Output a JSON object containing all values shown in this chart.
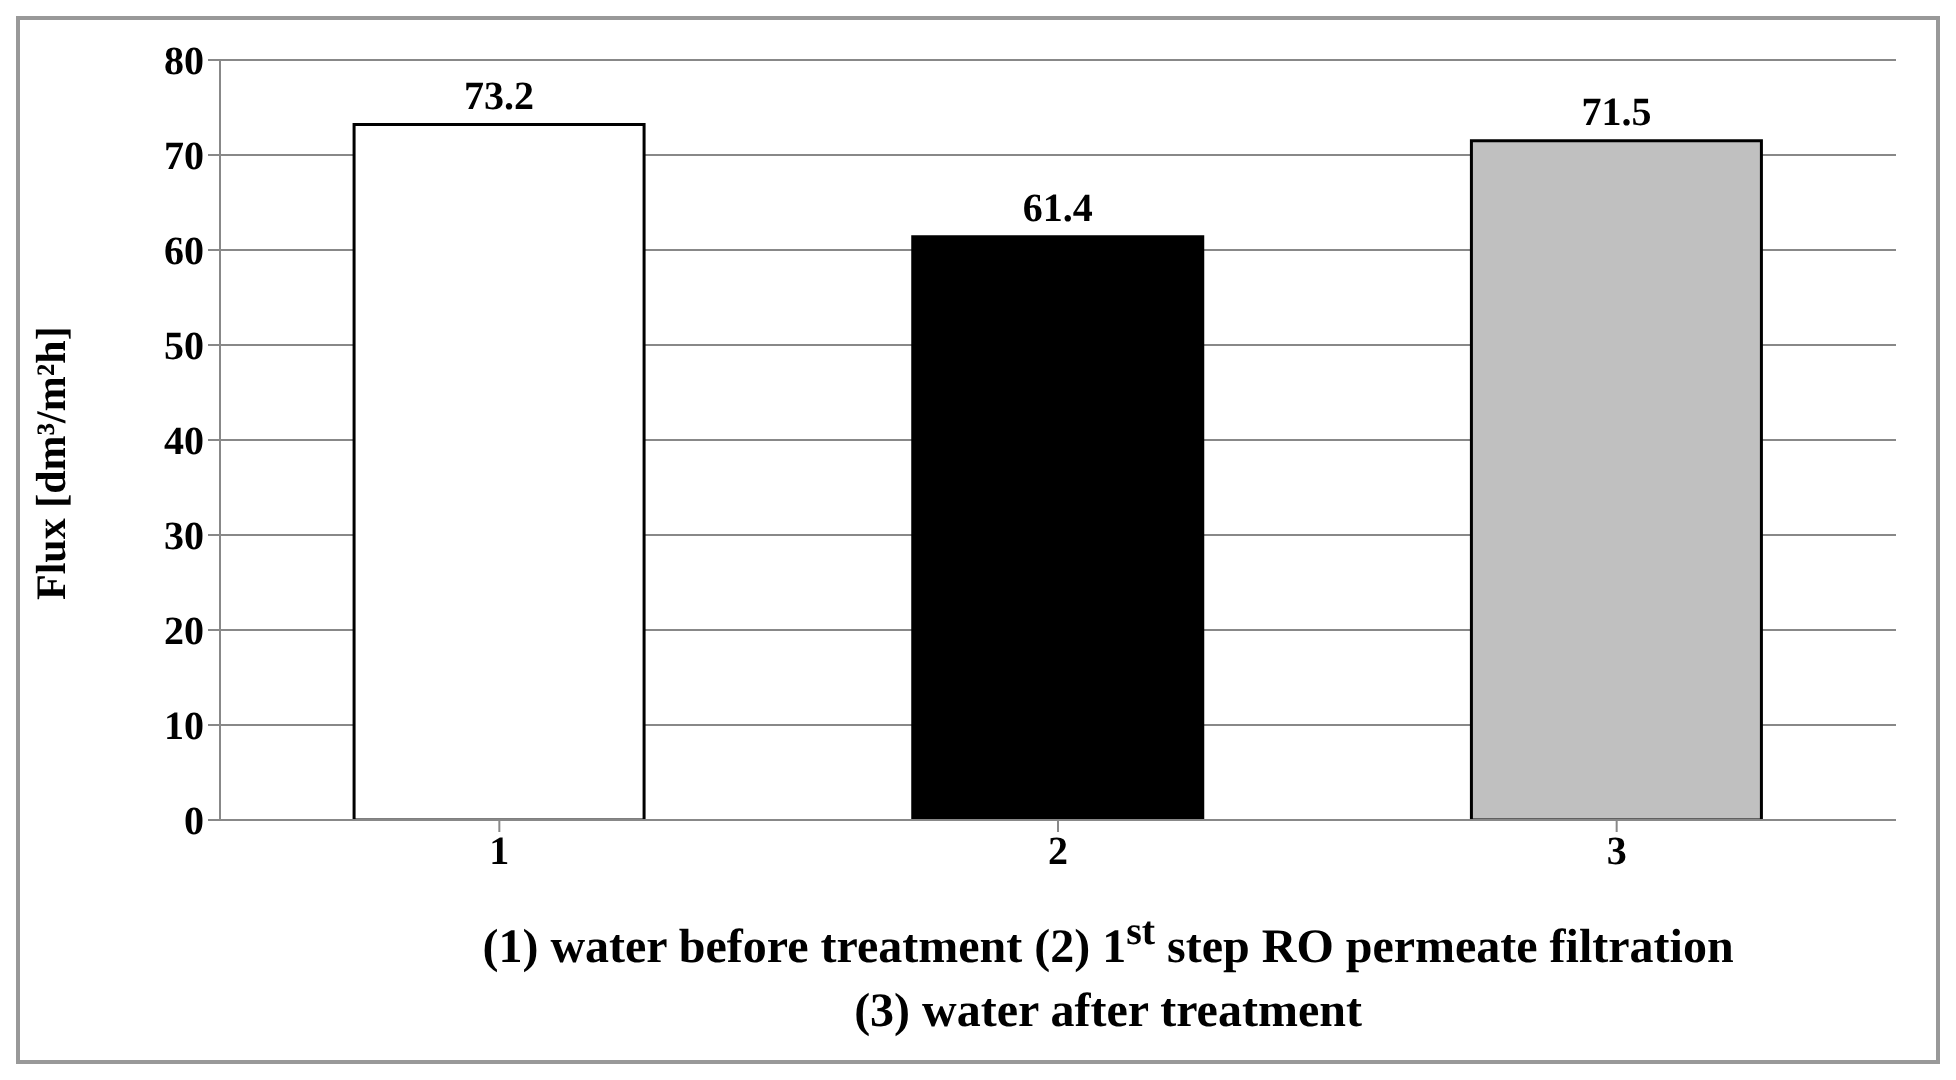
{
  "chart_data": {
    "type": "bar",
    "categories": [
      "1",
      "2",
      "3"
    ],
    "values": [
      73.2,
      61.4,
      71.5
    ],
    "colors": [
      "#ffffff",
      "#000000",
      "#c0c0c0"
    ],
    "ylim": [
      0,
      80
    ],
    "yticks": [
      0,
      10,
      20,
      30,
      40,
      50,
      60,
      70,
      80
    ],
    "grid": "y",
    "data_labels": true,
    "ylabel": "Flux [dm³/m²h]",
    "xlabel": "(1) water before treatment (2) 1$^{st}$ step RO permeate filtration\n(3) water after treatment"
  }
}
